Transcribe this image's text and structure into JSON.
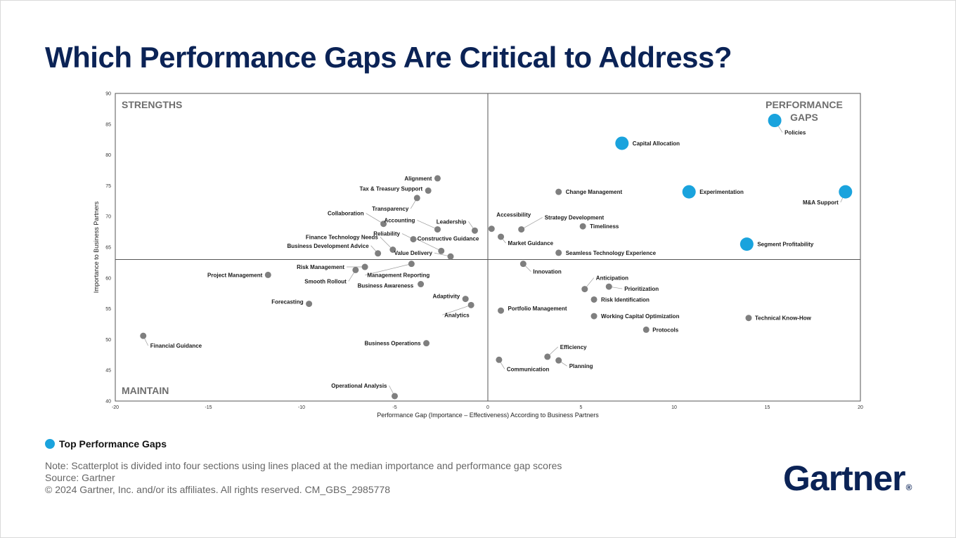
{
  "title": "Which Performance Gaps Are Critical to Address?",
  "legend": {
    "label": "Top Performance Gaps",
    "color": "#1aa3dd"
  },
  "notes": [
    "Note: Scatterplot is divided into four sections using lines placed at the median importance and performance gap scores",
    "Source: Gartner",
    "© 2024 Gartner, Inc. and/or its affiliates. All rights reserved. CM_GBS_2985778"
  ],
  "logo": {
    "text": "Gartner",
    "mark": "®"
  },
  "colors": {
    "top_gap": "#1aa3dd",
    "other": "#7f7f7f",
    "brand": "#0b2356"
  },
  "chart_data": {
    "type": "scatter",
    "title": "",
    "xlabel": "Performance Gap (Importance – Effectiveness) According to Business Partners",
    "ylabel": "Importance to Business Partners",
    "xlim": [
      -20,
      20
    ],
    "ylim": [
      40,
      90
    ],
    "xticks": [
      "-20",
      "-15",
      "-10",
      "-5",
      "0",
      "5",
      "10",
      "15",
      "20"
    ],
    "yticks": [
      "40",
      "45",
      "50",
      "55",
      "60",
      "65",
      "70",
      "75",
      "80",
      "85",
      "90"
    ],
    "median_lines": {
      "x": 0,
      "y": 63
    },
    "quadrant_labels": {
      "top_left": "STRENGTHS",
      "top_right": "PERFORMANCE GAPS",
      "bottom_left": "MAINTAIN"
    },
    "points": [
      {
        "label": "Policies",
        "x": 15.4,
        "y": 85.6,
        "top": true
      },
      {
        "label": "Capital Allocation",
        "x": 7.2,
        "y": 81.9,
        "top": true
      },
      {
        "label": "Experimentation",
        "x": 10.8,
        "y": 74.0,
        "top": true
      },
      {
        "label": "M&A Support",
        "x": 19.2,
        "y": 74.0,
        "top": true
      },
      {
        "label": "Segment Profitability",
        "x": 13.9,
        "y": 65.5,
        "top": true
      },
      {
        "label": "Change Management",
        "x": 3.8,
        "y": 74.0,
        "top": false
      },
      {
        "label": "Timeliness",
        "x": 5.1,
        "y": 68.4,
        "top": false
      },
      {
        "label": "Strategy Development",
        "x": 1.8,
        "y": 67.9,
        "top": false
      },
      {
        "label": "Accessibility",
        "x": 0.2,
        "y": 68.0,
        "top": false
      },
      {
        "label": "Market Guidance",
        "x": 0.7,
        "y": 66.7,
        "top": false
      },
      {
        "label": "Seamless Technology Experience",
        "x": 3.8,
        "y": 64.1,
        "top": false
      },
      {
        "label": "Innovation",
        "x": 1.9,
        "y": 62.3,
        "top": false
      },
      {
        "label": "Anticipation",
        "x": 5.2,
        "y": 58.2,
        "top": false
      },
      {
        "label": "Prioritization",
        "x": 6.5,
        "y": 58.6,
        "top": false
      },
      {
        "label": "Risk Identification",
        "x": 5.7,
        "y": 56.5,
        "top": false
      },
      {
        "label": "Portfolio Management",
        "x": 0.7,
        "y": 54.7,
        "top": false
      },
      {
        "label": "Working Capital Optimization",
        "x": 5.7,
        "y": 53.8,
        "top": false
      },
      {
        "label": "Technical Know-How",
        "x": 14.0,
        "y": 53.5,
        "top": false
      },
      {
        "label": "Protocols",
        "x": 8.5,
        "y": 51.6,
        "top": false
      },
      {
        "label": "Efficiency",
        "x": 3.2,
        "y": 47.2,
        "top": false
      },
      {
        "label": "Planning",
        "x": 3.8,
        "y": 46.6,
        "top": false
      },
      {
        "label": "Communication",
        "x": 0.6,
        "y": 46.7,
        "top": false
      },
      {
        "label": "Alignment",
        "x": -2.7,
        "y": 76.2,
        "top": false
      },
      {
        "label": "Tax & Treasury Support",
        "x": -3.2,
        "y": 74.2,
        "top": false
      },
      {
        "label": "Transparency",
        "x": -3.8,
        "y": 73.0,
        "top": false
      },
      {
        "label": "Collaboration",
        "x": -5.6,
        "y": 68.8,
        "top": false
      },
      {
        "label": "Accounting",
        "x": -2.7,
        "y": 67.9,
        "top": false
      },
      {
        "label": "Leadership",
        "x": -0.7,
        "y": 67.7,
        "top": false
      },
      {
        "label": "Reliability",
        "x": -4.0,
        "y": 66.3,
        "top": false
      },
      {
        "label": "Finance Technology Needs",
        "x": -5.1,
        "y": 64.6,
        "top": false
      },
      {
        "label": "Constructive Guidance",
        "x": -2.5,
        "y": 64.4,
        "top": false
      },
      {
        "label": "Value Delivery",
        "x": -2.0,
        "y": 63.5,
        "top": false
      },
      {
        "label": "Business Development Advice",
        "x": -5.9,
        "y": 64.0,
        "top": false
      },
      {
        "label": "Risk Management",
        "x": -6.6,
        "y": 61.8,
        "top": false
      },
      {
        "label": "Smooth Rollout",
        "x": -7.1,
        "y": 61.3,
        "top": false
      },
      {
        "label": "Management Reporting",
        "x": -4.1,
        "y": 62.3,
        "top": false
      },
      {
        "label": "Business Awareness",
        "x": -3.6,
        "y": 59.0,
        "top": false
      },
      {
        "label": "Project Management",
        "x": -11.8,
        "y": 60.5,
        "top": false
      },
      {
        "label": "Forecasting",
        "x": -9.6,
        "y": 55.8,
        "top": false
      },
      {
        "label": "Adaptivity",
        "x": -1.2,
        "y": 56.6,
        "top": false
      },
      {
        "label": "Analytics",
        "x": -0.9,
        "y": 55.6,
        "top": false
      },
      {
        "label": "Financial Guidance",
        "x": -18.5,
        "y": 50.6,
        "top": false
      },
      {
        "label": "Business Operations",
        "x": -3.3,
        "y": 49.4,
        "top": false
      },
      {
        "label": "Operational Analysis",
        "x": -5.0,
        "y": 40.8,
        "top": false
      }
    ]
  }
}
